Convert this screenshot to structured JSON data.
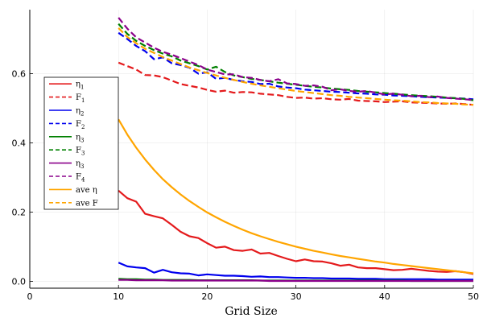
{
  "chart_data": {
    "type": "line",
    "xlabel": "Grid Size",
    "ylabel": "",
    "xlim": [
      0,
      50
    ],
    "ylim": [
      -0.02,
      0.785
    ],
    "xticks": [
      0,
      10,
      20,
      30,
      40,
      50
    ],
    "yticks": [
      0.0,
      0.2,
      0.4,
      0.6
    ],
    "xtick_labels": [
      "0",
      "10",
      "20",
      "30",
      "40",
      "50"
    ],
    "ytick_labels": [
      "0.0",
      "0.2",
      "0.4",
      "0.6"
    ],
    "grid": true,
    "legend_position": "left",
    "x": [
      10,
      11,
      12,
      13,
      14,
      15,
      16,
      17,
      18,
      19,
      20,
      21,
      22,
      23,
      24,
      25,
      26,
      27,
      28,
      29,
      30,
      31,
      32,
      33,
      34,
      35,
      36,
      37,
      38,
      39,
      40,
      41,
      42,
      43,
      44,
      45,
      46,
      47,
      48,
      49,
      50
    ],
    "series": [
      {
        "name": "η_1",
        "color": "#e41a1c",
        "dash": false,
        "values": [
          0.262,
          0.24,
          0.23,
          0.195,
          0.188,
          0.182,
          0.163,
          0.143,
          0.13,
          0.125,
          0.11,
          0.097,
          0.1,
          0.09,
          0.088,
          0.092,
          0.08,
          0.082,
          0.073,
          0.065,
          0.058,
          0.063,
          0.058,
          0.057,
          0.052,
          0.045,
          0.048,
          0.04,
          0.038,
          0.038,
          0.035,
          0.032,
          0.033,
          0.036,
          0.033,
          0.03,
          0.028,
          0.027,
          0.029,
          0.026,
          0.021
        ]
      },
      {
        "name": "F_1",
        "color": "#e41a1c",
        "dash": true,
        "values": [
          0.632,
          0.622,
          0.612,
          0.596,
          0.595,
          0.59,
          0.58,
          0.57,
          0.565,
          0.56,
          0.553,
          0.548,
          0.551,
          0.545,
          0.547,
          0.546,
          0.542,
          0.54,
          0.538,
          0.533,
          0.53,
          0.531,
          0.528,
          0.529,
          0.526,
          0.525,
          0.527,
          0.522,
          0.521,
          0.52,
          0.518,
          0.519,
          0.52,
          0.517,
          0.516,
          0.515,
          0.514,
          0.513,
          0.514,
          0.512,
          0.51
        ]
      },
      {
        "name": "η_2",
        "color": "#0000ee",
        "dash": false,
        "values": [
          0.054,
          0.043,
          0.04,
          0.038,
          0.025,
          0.033,
          0.026,
          0.023,
          0.022,
          0.017,
          0.02,
          0.018,
          0.016,
          0.016,
          0.015,
          0.013,
          0.014,
          0.012,
          0.012,
          0.011,
          0.01,
          0.01,
          0.009,
          0.009,
          0.008,
          0.008,
          0.008,
          0.007,
          0.007,
          0.007,
          0.006,
          0.006,
          0.006,
          0.006,
          0.006,
          0.006,
          0.005,
          0.005,
          0.005,
          0.005,
          0.005
        ]
      },
      {
        "name": "F_2",
        "color": "#0000ee",
        "dash": true,
        "values": [
          0.718,
          0.7,
          0.68,
          0.665,
          0.642,
          0.647,
          0.63,
          0.625,
          0.617,
          0.6,
          0.604,
          0.585,
          0.588,
          0.582,
          0.578,
          0.576,
          0.57,
          0.571,
          0.563,
          0.56,
          0.558,
          0.554,
          0.552,
          0.55,
          0.548,
          0.547,
          0.545,
          0.543,
          0.542,
          0.54,
          0.539,
          0.537,
          0.536,
          0.535,
          0.533,
          0.532,
          0.531,
          0.53,
          0.529,
          0.528,
          0.526
        ]
      },
      {
        "name": "η_3",
        "color": "#008000",
        "dash": false,
        "values": [
          0.007,
          0.006,
          0.006,
          0.005,
          0.005,
          0.004,
          0.004,
          0.004,
          0.004,
          0.003,
          0.003,
          0.003,
          0.003,
          0.003,
          0.003,
          0.003,
          0.002,
          0.002,
          0.002,
          0.002,
          0.002,
          0.002,
          0.002,
          0.002,
          0.002,
          0.002,
          0.002,
          0.002,
          0.002,
          0.002,
          0.002,
          0.002,
          0.002,
          0.001,
          0.001,
          0.001,
          0.001,
          0.001,
          0.001,
          0.001,
          0.001
        ]
      },
      {
        "name": "F_3",
        "color": "#008000",
        "dash": true,
        "values": [
          0.744,
          0.715,
          0.695,
          0.68,
          0.668,
          0.658,
          0.65,
          0.638,
          0.63,
          0.622,
          0.612,
          0.62,
          0.605,
          0.595,
          0.59,
          0.585,
          0.582,
          0.578,
          0.574,
          0.571,
          0.568,
          0.565,
          0.562,
          0.56,
          0.557,
          0.555,
          0.553,
          0.55,
          0.548,
          0.546,
          0.544,
          0.542,
          0.54,
          0.538,
          0.536,
          0.535,
          0.533,
          0.531,
          0.529,
          0.527,
          0.523
        ]
      },
      {
        "name": "η_3",
        "color": "#8b008b",
        "dash": false,
        "values": [
          0.004,
          0.004,
          0.003,
          0.003,
          0.003,
          0.003,
          0.002,
          0.002,
          0.002,
          0.002,
          0.002,
          0.002,
          0.002,
          0.002,
          0.002,
          0.002,
          0.002,
          0.001,
          0.001,
          0.001,
          0.001,
          0.001,
          0.001,
          0.001,
          0.001,
          0.001,
          0.001,
          0.001,
          0.001,
          0.001,
          0.001,
          0.001,
          0.001,
          0.001,
          0.001,
          0.001,
          0.001,
          0.001,
          0.001,
          0.001,
          0.001
        ]
      },
      {
        "name": "F_4",
        "color": "#8b008b",
        "dash": true,
        "values": [
          0.762,
          0.73,
          0.705,
          0.69,
          0.675,
          0.663,
          0.655,
          0.645,
          0.635,
          0.625,
          0.612,
          0.605,
          0.598,
          0.598,
          0.59,
          0.588,
          0.582,
          0.578,
          0.584,
          0.572,
          0.57,
          0.565,
          0.566,
          0.562,
          0.552,
          0.555,
          0.55,
          0.548,
          0.55,
          0.545,
          0.54,
          0.542,
          0.539,
          0.535,
          0.536,
          0.532,
          0.534,
          0.53,
          0.528,
          0.526,
          0.524
        ]
      },
      {
        "name": "ave η",
        "color": "#ffa500",
        "dash": false,
        "values": [
          0.468,
          0.424,
          0.386,
          0.352,
          0.322,
          0.295,
          0.272,
          0.251,
          0.232,
          0.215,
          0.199,
          0.185,
          0.172,
          0.16,
          0.149,
          0.139,
          0.13,
          0.122,
          0.114,
          0.107,
          0.1,
          0.094,
          0.088,
          0.083,
          0.078,
          0.073,
          0.069,
          0.065,
          0.061,
          0.057,
          0.054,
          0.05,
          0.047,
          0.044,
          0.041,
          0.038,
          0.035,
          0.032,
          0.029,
          0.026,
          0.023
        ]
      },
      {
        "name": "ave F",
        "color": "#ffa500",
        "dash": true,
        "values": [
          0.732,
          0.706,
          0.688,
          0.672,
          0.66,
          0.648,
          0.638,
          0.628,
          0.618,
          0.61,
          0.602,
          0.595,
          0.588,
          0.582,
          0.576,
          0.571,
          0.566,
          0.562,
          0.558,
          0.554,
          0.55,
          0.547,
          0.544,
          0.541,
          0.538,
          0.536,
          0.533,
          0.531,
          0.529,
          0.527,
          0.525,
          0.523,
          0.522,
          0.52,
          0.518,
          0.517,
          0.515,
          0.514,
          0.513,
          0.511,
          0.51
        ]
      }
    ],
    "legend": [
      {
        "base": "η",
        "sub": "1"
      },
      {
        "base": "F",
        "sub": "1"
      },
      {
        "base": "η",
        "sub": "2"
      },
      {
        "base": "F",
        "sub": "2"
      },
      {
        "base": "η",
        "sub": "3"
      },
      {
        "base": "F",
        "sub": "3"
      },
      {
        "base": "η",
        "sub": "3"
      },
      {
        "base": "F",
        "sub": "4"
      },
      {
        "base": "ave η",
        "sub": ""
      },
      {
        "base": "ave F",
        "sub": ""
      }
    ]
  }
}
